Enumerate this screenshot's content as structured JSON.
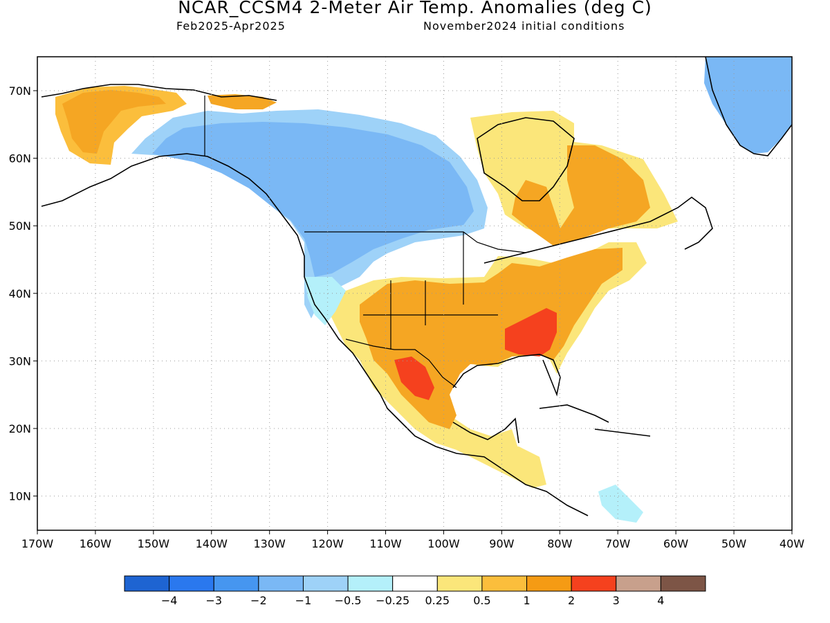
{
  "title": "NCAR_CCSM4 2-Meter Air Temp. Anomalies (deg C)",
  "subtitle_left": "Feb2025-Apr2025",
  "subtitle_right": "November2024 initial conditions",
  "map": {
    "lon_labels": [
      "170W",
      "160W",
      "150W",
      "140W",
      "130W",
      "120W",
      "110W",
      "100W",
      "90W",
      "80W",
      "70W",
      "60W",
      "50W",
      "40W"
    ],
    "lat_labels": [
      "70N",
      "60N",
      "50N",
      "40N",
      "30N",
      "20N",
      "10N"
    ],
    "gridlines": "dotted",
    "highlights": [
      {
        "region": "Southeastern US",
        "category": "2 to 3",
        "color": "#f5411e"
      },
      {
        "region": "Northern Mexico",
        "category": "2 to 3",
        "color": "#f5411e"
      },
      {
        "region": "Western Canada",
        "category": "-2 to -1",
        "color": "#7ab8f5"
      },
      {
        "region": "Greenland",
        "category": "-2 to -1",
        "color": "#7ab8f5"
      },
      {
        "region": "Western Alaska",
        "category": "1 to 2",
        "color": "#f5a623"
      }
    ]
  },
  "colorbar": {
    "tick_labels": [
      "-4",
      "-3",
      "-2",
      "-1",
      "-0.5",
      "-0.25",
      "0.25",
      "0.5",
      "1",
      "2",
      "3",
      "4"
    ],
    "colors": [
      "#1e64d2",
      "#2a78ee",
      "#4696f0",
      "#7ab8f5",
      "#9ed2f8",
      "#b4f0fa",
      "#ffffff",
      "#fbe67a",
      "#fbbe3c",
      "#f59b14",
      "#f5411e",
      "#c8a08c",
      "#7d5546"
    ]
  }
}
